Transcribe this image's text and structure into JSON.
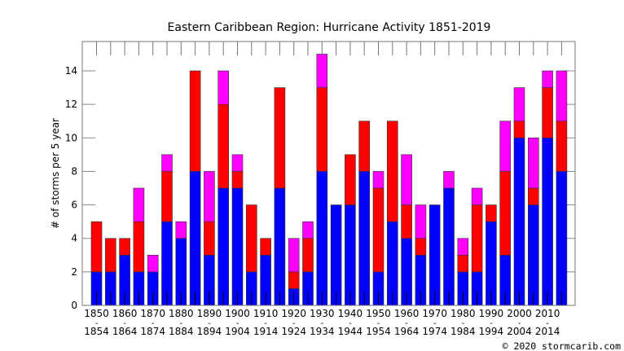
{
  "chart_data": {
    "type": "bar",
    "stacked": true,
    "title": "Eastern Caribbean Region: Hurricane Activity 1851-2019",
    "xlabel": "",
    "ylabel": "# of storms per 5 year",
    "ylim": [
      0,
      15.75
    ],
    "yticks": [
      0,
      2,
      4,
      6,
      8,
      10,
      12,
      14
    ],
    "grid": false,
    "categories": [
      "1850",
      "1855",
      "1860",
      "1865",
      "1870",
      "1875",
      "1880",
      "1885",
      "1890",
      "1895",
      "1900",
      "1905",
      "1910",
      "1915",
      "1920",
      "1925",
      "1930",
      "1935",
      "1940",
      "1945",
      "1950",
      "1955",
      "1960",
      "1965",
      "1970",
      "1975",
      "1980",
      "1985",
      "1990",
      "1995",
      "2000",
      "2005",
      "2010",
      "2015"
    ],
    "tick_labels": [
      {
        "top": "1850",
        "bottom": "1854"
      },
      {
        "top": "1860",
        "bottom": "1864"
      },
      {
        "top": "1870",
        "bottom": "1874"
      },
      {
        "top": "1880",
        "bottom": "1884"
      },
      {
        "top": "1890",
        "bottom": "1894"
      },
      {
        "top": "1900",
        "bottom": "1904"
      },
      {
        "top": "1910",
        "bottom": "1914"
      },
      {
        "top": "1920",
        "bottom": "1924"
      },
      {
        "top": "1930",
        "bottom": "1934"
      },
      {
        "top": "1940",
        "bottom": "1944"
      },
      {
        "top": "1950",
        "bottom": "1954"
      },
      {
        "top": "1960",
        "bottom": "1964"
      },
      {
        "top": "1970",
        "bottom": "1974"
      },
      {
        "top": "1980",
        "bottom": "1984"
      },
      {
        "top": "1990",
        "bottom": "1994"
      },
      {
        "top": "2000",
        "bottom": "2004"
      },
      {
        "top": "2010",
        "bottom": "2014"
      }
    ],
    "tick_separator": "-",
    "series": [
      {
        "color": "#0000ff",
        "values": [
          2,
          2,
          3,
          2,
          2,
          5,
          4,
          8,
          3,
          7,
          7,
          2,
          3,
          7,
          1,
          2,
          8,
          6,
          6,
          8,
          2,
          5,
          4,
          3,
          6,
          7,
          2,
          2,
          5,
          3,
          10,
          6,
          10,
          8
        ]
      },
      {
        "color": "#ff0000",
        "values": [
          3,
          2,
          1,
          3,
          0,
          3,
          0,
          6,
          2,
          5,
          1,
          4,
          1,
          6,
          1,
          2,
          5,
          0,
          3,
          3,
          5,
          6,
          2,
          1,
          0,
          0,
          1,
          4,
          1,
          5,
          1,
          1,
          3,
          3
        ]
      },
      {
        "color": "#ff00ff",
        "values": [
          0,
          0,
          0,
          2,
          1,
          1,
          1,
          0,
          3,
          2,
          1,
          0,
          0,
          0,
          2,
          1,
          2,
          0,
          0,
          0,
          1,
          0,
          3,
          2,
          0,
          1,
          1,
          1,
          0,
          3,
          2,
          3,
          1,
          3
        ]
      }
    ]
  },
  "footer": {
    "copyright": "© 2020 stormcarib.com"
  }
}
